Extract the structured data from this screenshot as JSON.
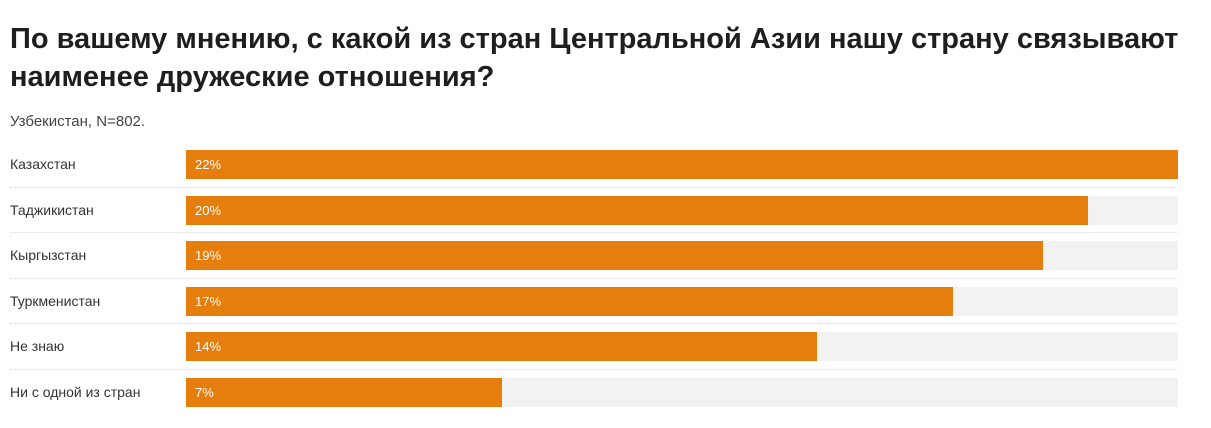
{
  "header": {
    "title": "По вашему мнению, с какой из стран Центральной Азии нашу страну связывают наименее дружеские отношения?",
    "subtitle": "Узбекистан, N=802."
  },
  "colors": {
    "bar": "#e67e0d",
    "track": "#f2f2f2"
  },
  "chart_data": {
    "type": "bar",
    "orientation": "horizontal",
    "title": "По вашему мнению, с какой из стран Центральной Азии нашу страну связывают наименее дружеские отношения?",
    "subtitle": "Узбекистан, N=802.",
    "unit": "%",
    "categories": [
      "Казахстан",
      "Таджикистан",
      "Кыргызстан",
      "Туркменистан",
      "Не знаю",
      "Ни с одной из стран"
    ],
    "values": [
      22,
      20,
      19,
      17,
      14,
      7
    ],
    "value_labels": [
      "22%",
      "20%",
      "19%",
      "17%",
      "14%",
      "7%"
    ],
    "xlim": [
      0,
      22
    ],
    "grid": false,
    "legend": "none"
  }
}
